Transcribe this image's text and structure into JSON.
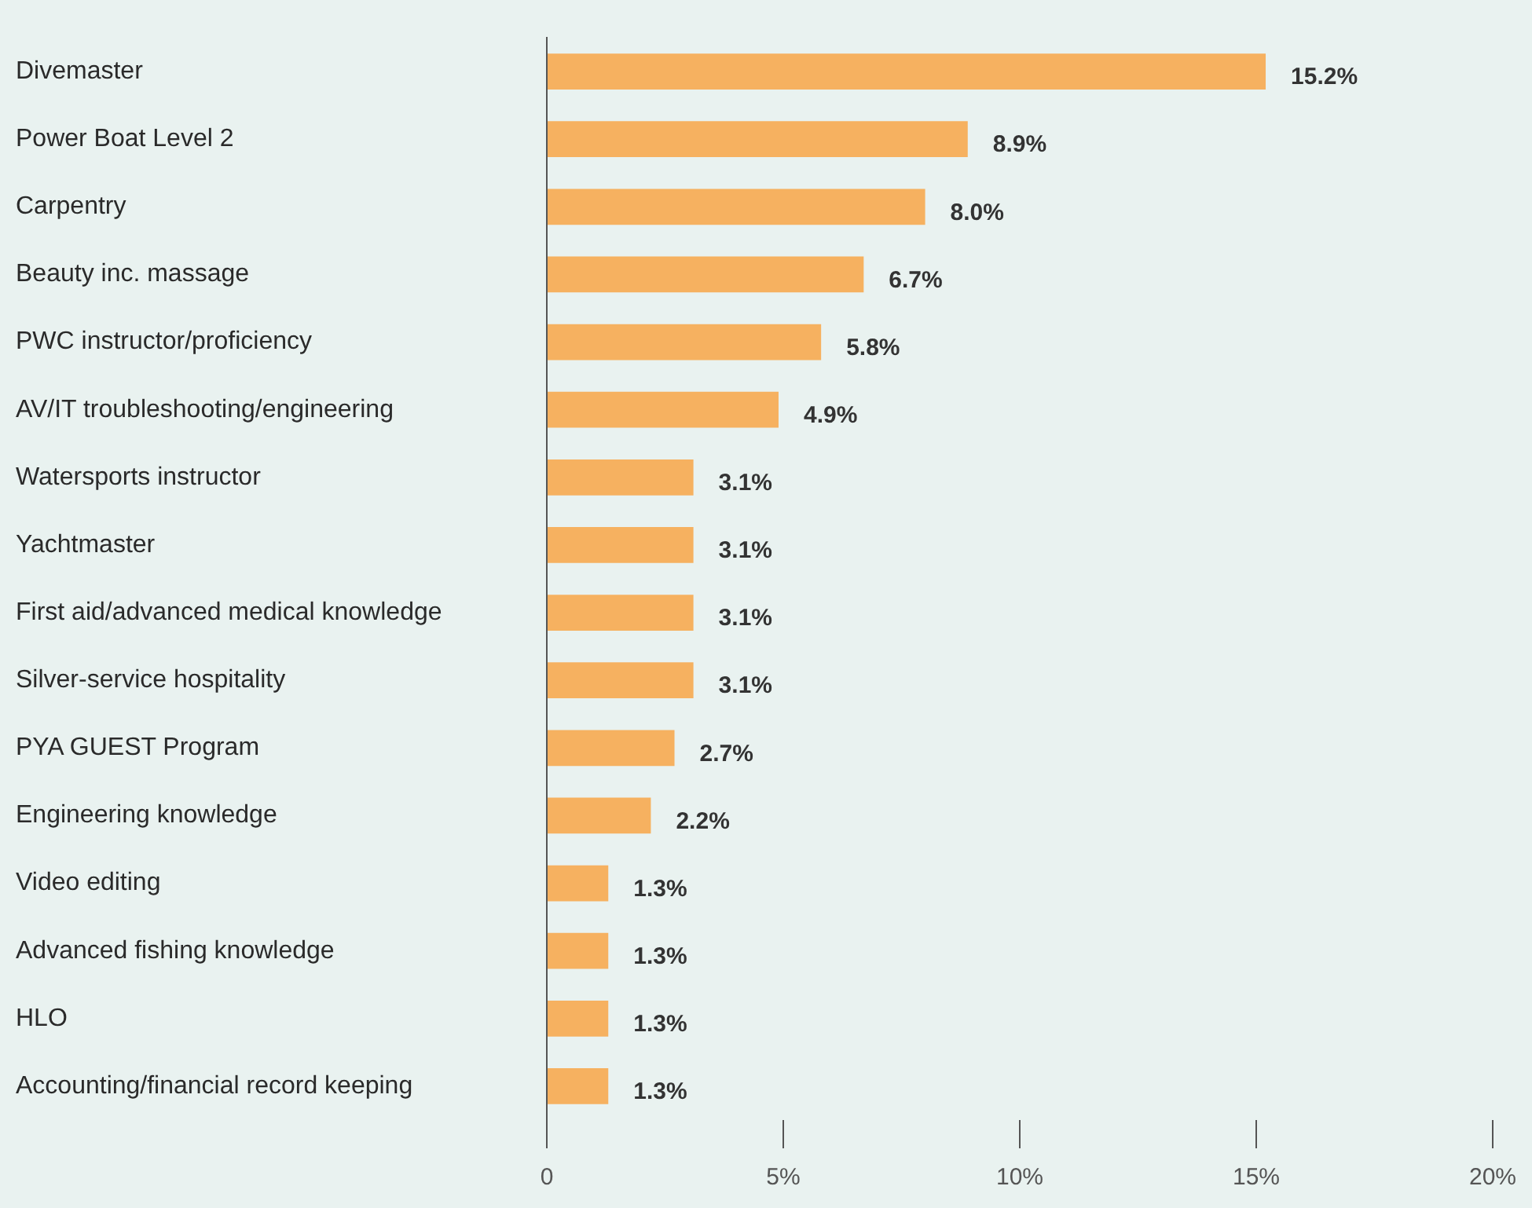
{
  "chart_data": {
    "type": "bar",
    "orientation": "horizontal",
    "categories": [
      "Divemaster",
      "Power Boat Level 2",
      "Carpentry",
      "Beauty inc. massage",
      "PWC instructor/proficiency",
      "AV/IT troubleshooting/engineering",
      "Watersports instructor",
      "Yachtmaster",
      "First aid/advanced medical knowledge",
      "Silver-service hospitality",
      "PYA GUEST Program",
      "Engineering knowledge",
      "Video editing",
      "Advanced fishing knowledge",
      "HLO",
      "Accounting/financial record keeping"
    ],
    "values": [
      15.2,
      8.9,
      8.0,
      6.7,
      5.8,
      4.9,
      3.1,
      3.1,
      3.1,
      3.1,
      2.7,
      2.2,
      1.3,
      1.3,
      1.3,
      1.3
    ],
    "value_labels": [
      "15.2%",
      "8.9%",
      "8.0%",
      "6.7%",
      "5.8%",
      "4.9%",
      "3.1%",
      "3.1%",
      "3.1%",
      "3.1%",
      "2.7%",
      "2.2%",
      "1.3%",
      "1.3%",
      "1.3%",
      "1.3%"
    ],
    "color": "#f6b160",
    "xlim": [
      0,
      20
    ],
    "xticks": [
      0,
      {
        "value": 5,
        "label": "5%"
      },
      {
        "value": 10,
        "label": "10%"
      },
      {
        "value": 15,
        "label": "15%"
      },
      {
        "value": 20,
        "label": "20%"
      }
    ],
    "grid": false,
    "legend": false
  }
}
